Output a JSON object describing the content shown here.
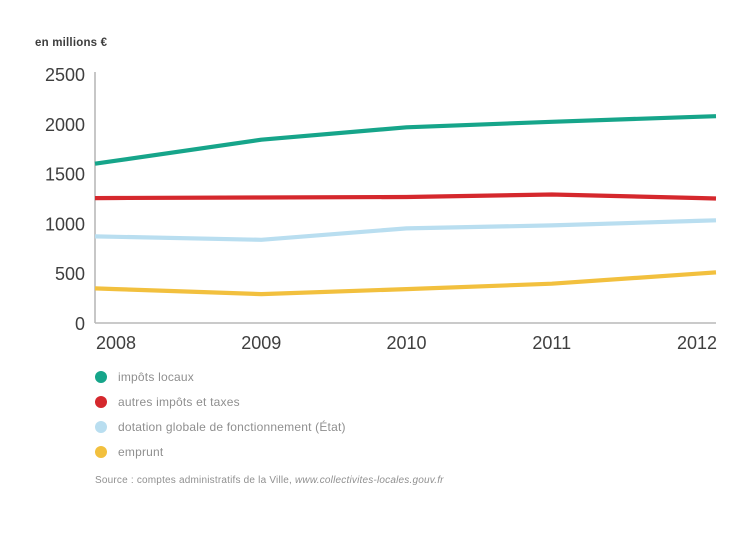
{
  "chart": {
    "unit_label": "en millions €",
    "source": {
      "text": "Source : comptes administratifs de la Ville, ",
      "url": "www.collectivites-locales.gouv.fr"
    }
  },
  "chart_data": {
    "type": "line",
    "title": "",
    "ylabel": "en millions €",
    "xlabel": "",
    "x": [
      "2008",
      "2009",
      "2010",
      "2011",
      "2012"
    ],
    "yticks": [
      0,
      500,
      1000,
      1500,
      2000,
      2500
    ],
    "ylim": [
      0,
      2500
    ],
    "grid": false,
    "legend_position": "bottom-left",
    "axis_color": "#b9b9b9",
    "tick_label_color": "#3f3f3f",
    "series": [
      {
        "name": "impôts locaux",
        "color": "#16a58a",
        "values": [
          1640,
          1850,
          1975,
          2030,
          2080
        ]
      },
      {
        "name": "autres impôts et taxes",
        "color": "#d5282d",
        "values": [
          1265,
          1270,
          1275,
          1300,
          1265
        ]
      },
      {
        "name": "dotation globale de fonctionnement (État)",
        "color": "#b9def0",
        "values": [
          875,
          845,
          960,
          990,
          1035
        ]
      },
      {
        "name": "emprunt",
        "color": "#f2c03e",
        "values": [
          350,
          300,
          350,
          405,
          505
        ]
      }
    ]
  }
}
